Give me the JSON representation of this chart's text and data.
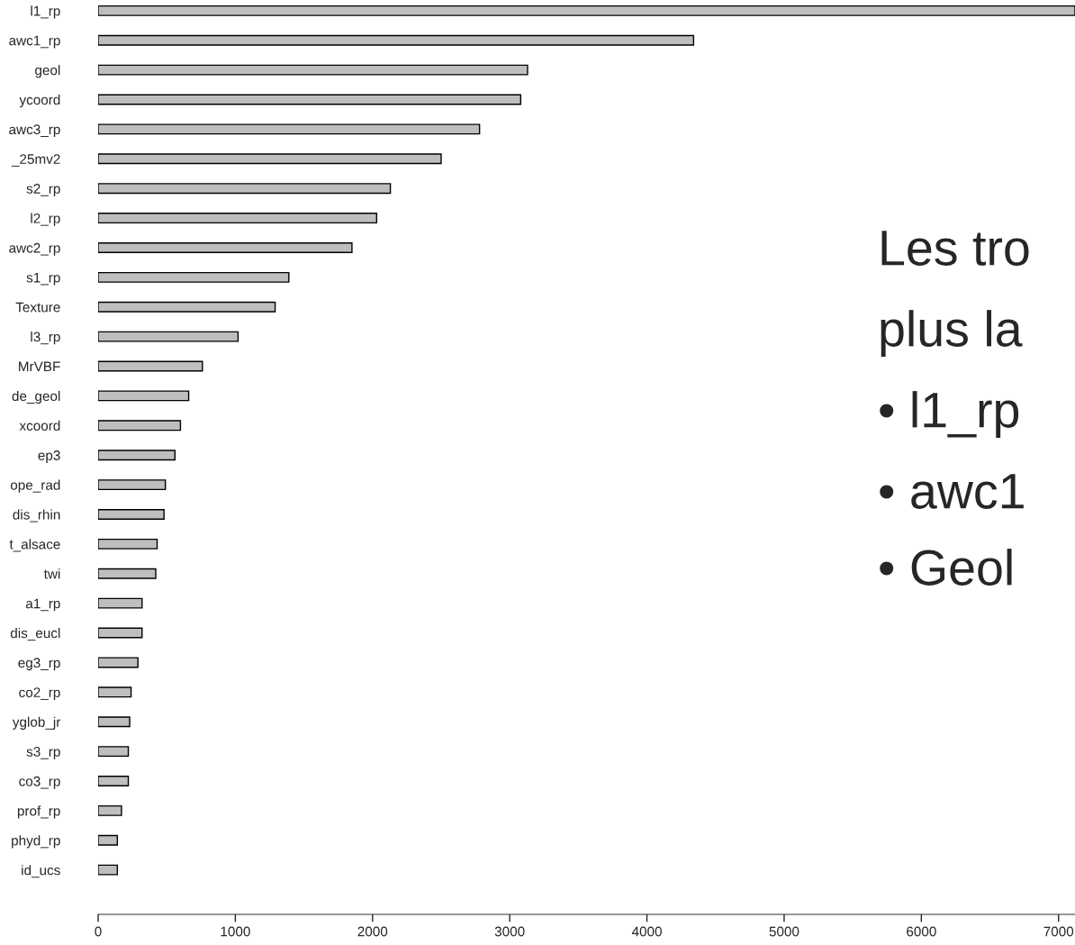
{
  "chart_data": {
    "type": "bar",
    "orientation": "horizontal",
    "categories": [
      "l1_rp",
      "awc1_rp",
      "geol",
      "ycoord",
      "awc3_rp",
      "_25mv2",
      "s2_rp",
      "l2_rp",
      "awc2_rp",
      "s1_rp",
      "Texture",
      "l3_rp",
      "MrVBF",
      "de_geol",
      "xcoord",
      "ep3",
      "ope_rad",
      "dis_rhin",
      "t_alsace",
      "twi",
      "a1_rp",
      "dis_eucl",
      "eg3_rp",
      "co2_rp",
      "yglob_jr",
      "s3_rp",
      "co3_rp",
      "prof_rp",
      "phyd_rp",
      "id_ucs"
    ],
    "values": [
      7120,
      4340,
      3130,
      3080,
      2780,
      2500,
      2130,
      2030,
      1850,
      1390,
      1290,
      1020,
      760,
      660,
      600,
      560,
      490,
      480,
      430,
      420,
      320,
      320,
      290,
      240,
      230,
      220,
      220,
      170,
      140,
      140
    ],
    "color": "#bebebe",
    "xlim": [
      0,
      7120
    ],
    "xticks": [
      0,
      1000,
      2000,
      3000,
      4000,
      5000,
      6000,
      7000
    ],
    "grid": false,
    "annotations": [
      "Les tro",
      "plus la",
      "• l1_rp",
      "• awc1",
      "• Geol"
    ]
  }
}
